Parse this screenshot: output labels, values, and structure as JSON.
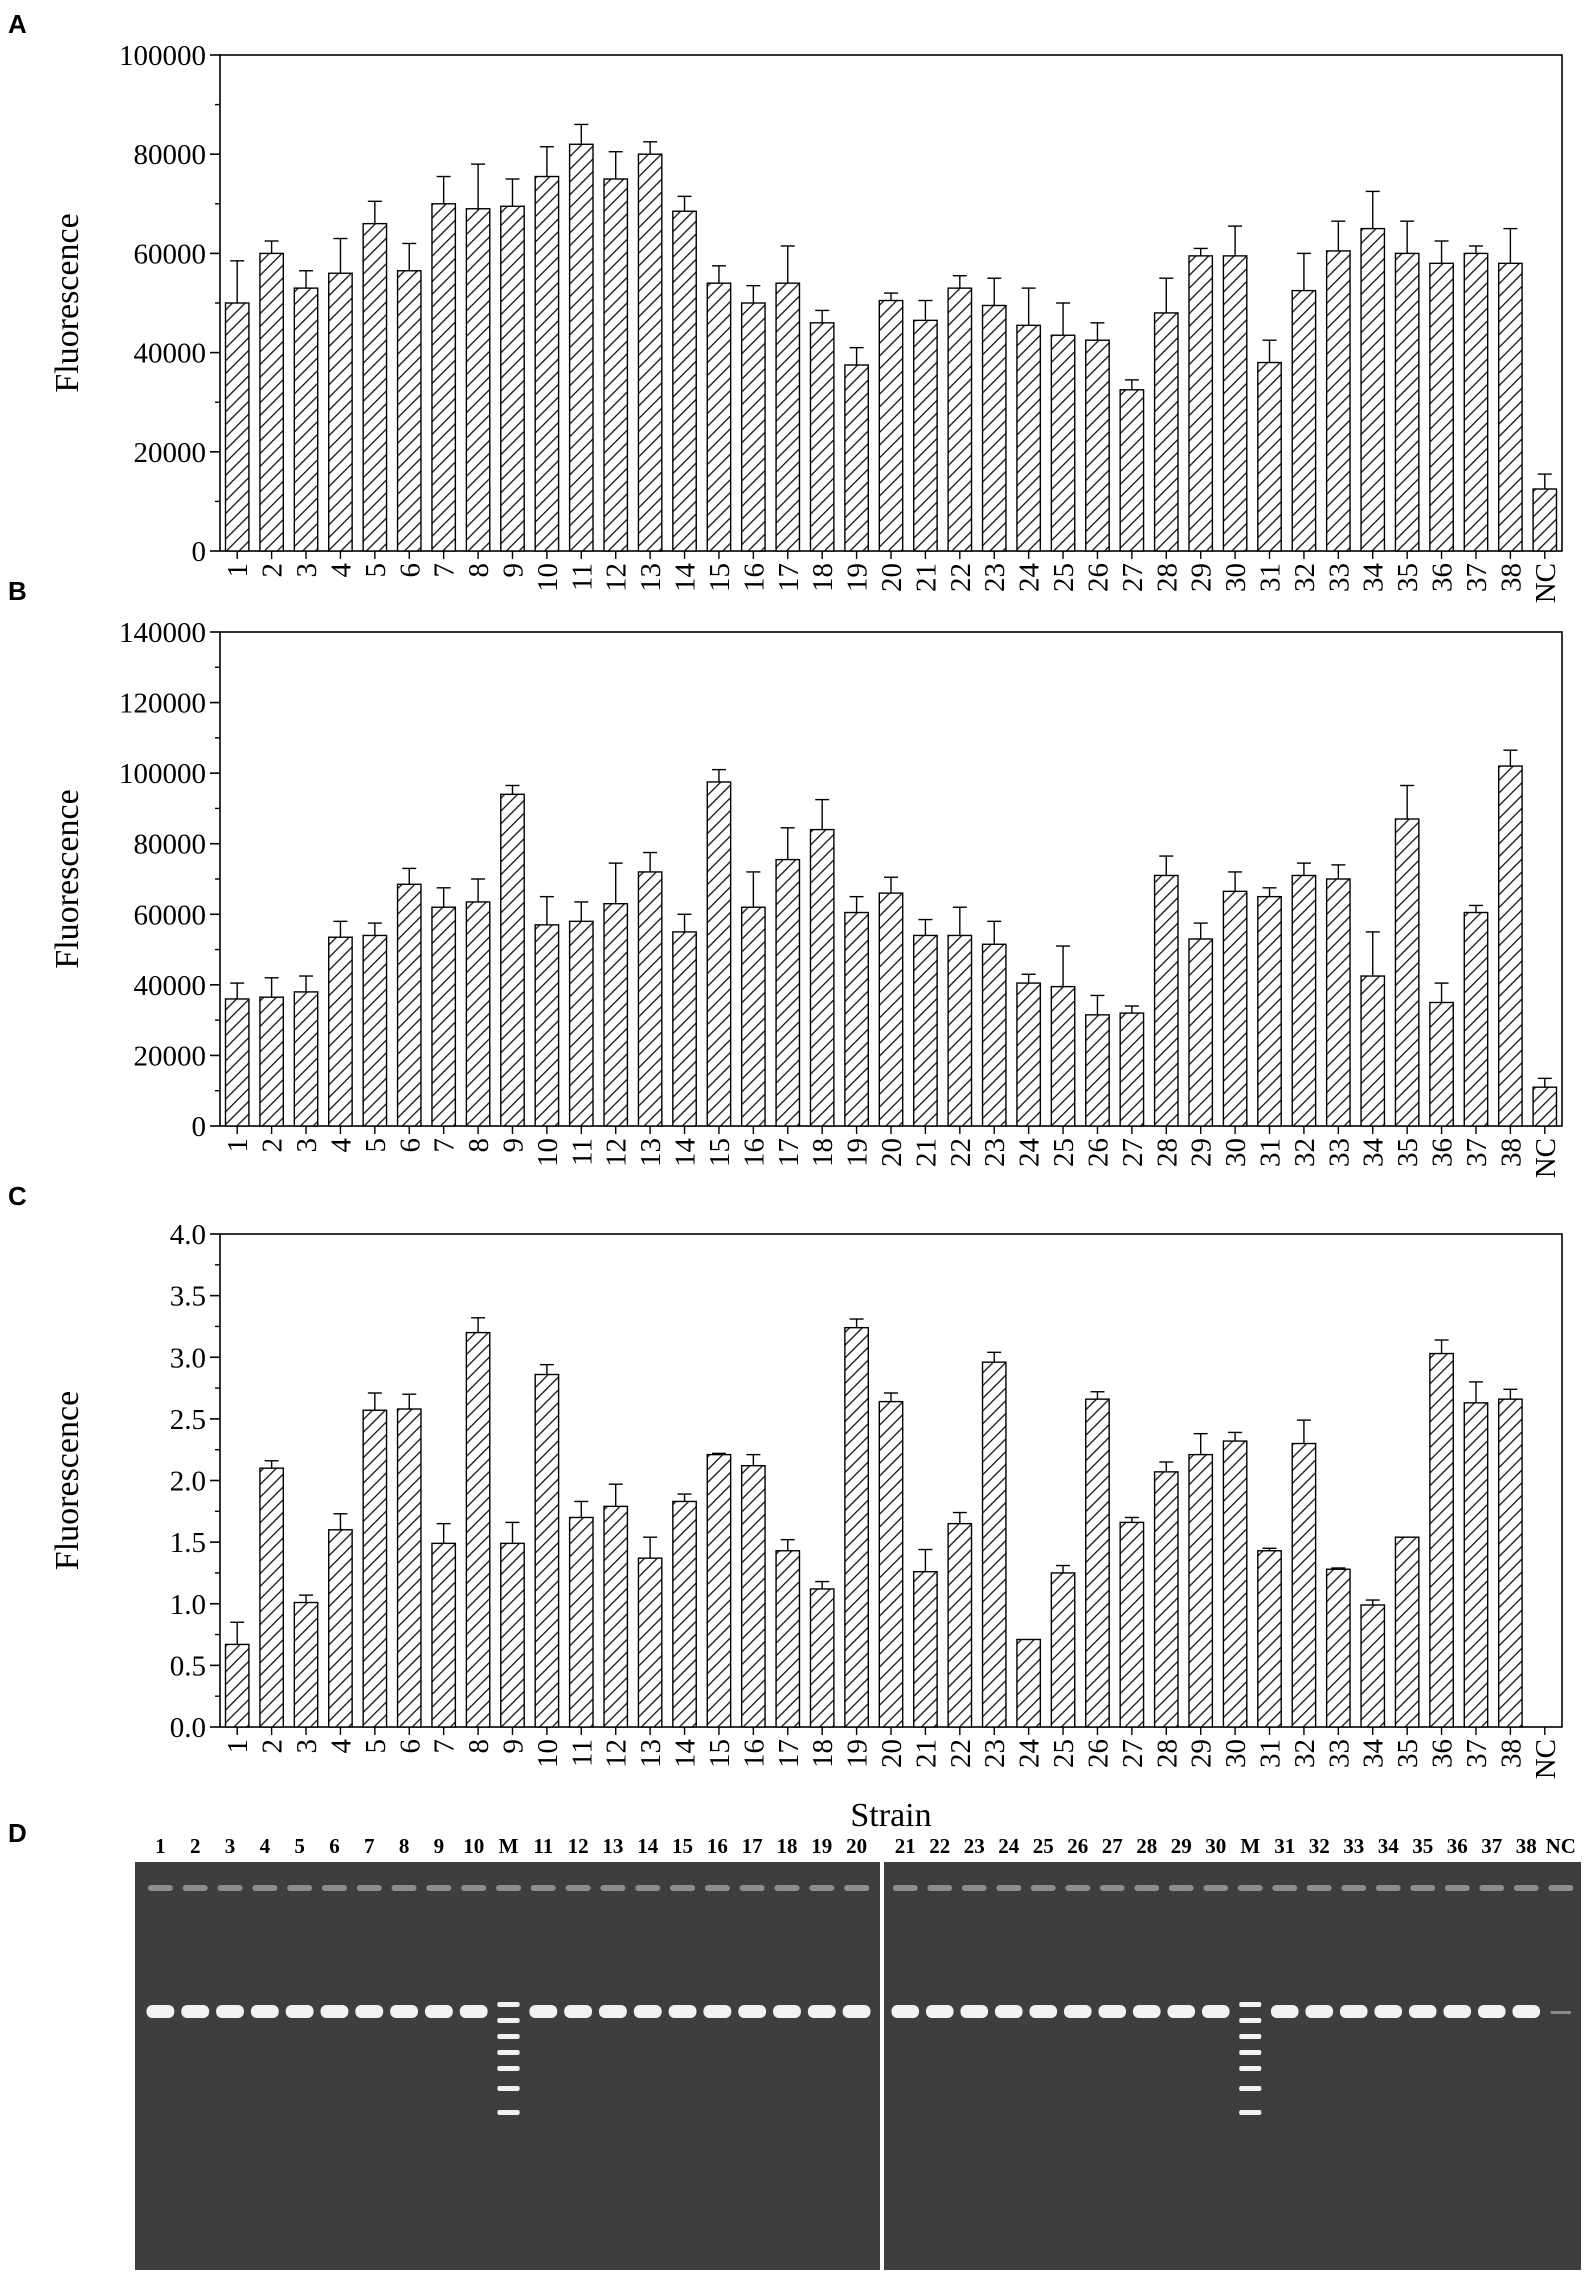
{
  "chart_data": [
    {
      "panel": "A",
      "type": "bar",
      "ylabel": "Fluorescence",
      "xlabel": "",
      "ylim": [
        0,
        100000
      ],
      "yticks": [
        0,
        20000,
        40000,
        60000,
        80000,
        100000
      ],
      "ytick_labels": [
        "0",
        "20000",
        "40000",
        "60000",
        "80000",
        "100000"
      ],
      "categories": [
        "1",
        "2",
        "3",
        "4",
        "5",
        "6",
        "7",
        "8",
        "9",
        "10",
        "11",
        "12",
        "13",
        "14",
        "15",
        "16",
        "17",
        "18",
        "19",
        "20",
        "21",
        "22",
        "23",
        "24",
        "25",
        "26",
        "27",
        "28",
        "29",
        "30",
        "31",
        "32",
        "33",
        "34",
        "35",
        "36",
        "37",
        "38",
        "NC"
      ],
      "values": [
        50000,
        60000,
        53000,
        56000,
        66000,
        56500,
        70000,
        69000,
        69500,
        75500,
        82000,
        75000,
        80000,
        68500,
        54000,
        50000,
        54000,
        46000,
        37500,
        50500,
        46500,
        53000,
        49500,
        45500,
        43500,
        42500,
        32500,
        48000,
        59500,
        59500,
        38000,
        52500,
        60500,
        65000,
        60000,
        58000,
        60000,
        58000,
        12500
      ],
      "errors": [
        8500,
        2500,
        3500,
        7000,
        4500,
        5500,
        5500,
        9000,
        5500,
        6000,
        4000,
        5500,
        2500,
        3000,
        3500,
        3500,
        7500,
        2500,
        3500,
        1500,
        4000,
        2500,
        5500,
        7500,
        6500,
        3500,
        2000,
        7000,
        1500,
        6000,
        4500,
        7500,
        6000,
        7500,
        6500,
        4500,
        1500,
        7000,
        3000
      ],
      "grid": false,
      "legend": "none"
    },
    {
      "panel": "B",
      "type": "bar",
      "ylabel": "Fluorescence",
      "xlabel": "",
      "ylim": [
        0,
        140000
      ],
      "yticks": [
        0,
        20000,
        40000,
        60000,
        80000,
        100000,
        120000,
        140000
      ],
      "ytick_labels": [
        "0",
        "20000",
        "40000",
        "60000",
        "80000",
        "100000",
        "120000",
        "140000"
      ],
      "categories": [
        "1",
        "2",
        "3",
        "4",
        "5",
        "6",
        "7",
        "8",
        "9",
        "10",
        "11",
        "12",
        "13",
        "14",
        "15",
        "16",
        "17",
        "18",
        "19",
        "20",
        "21",
        "22",
        "23",
        "24",
        "25",
        "26",
        "27",
        "28",
        "29",
        "30",
        "31",
        "32",
        "33",
        "34",
        "35",
        "36",
        "37",
        "38",
        "NC"
      ],
      "values": [
        36000,
        36500,
        38000,
        53500,
        54000,
        68500,
        62000,
        63500,
        94000,
        57000,
        58000,
        63000,
        72000,
        55000,
        97500,
        62000,
        75500,
        84000,
        60500,
        66000,
        54000,
        54000,
        51500,
        40500,
        39500,
        31500,
        32000,
        71000,
        53000,
        66500,
        65000,
        71000,
        70000,
        42500,
        87000,
        35000,
        60500,
        102000,
        11000
      ],
      "errors": [
        4500,
        5500,
        4500,
        4500,
        3500,
        4500,
        5500,
        6500,
        2500,
        8000,
        5500,
        11500,
        5500,
        5000,
        3500,
        10000,
        9000,
        8500,
        4500,
        4500,
        4500,
        8000,
        6500,
        2500,
        11500,
        5500,
        2000,
        5500,
        4500,
        5500,
        2500,
        3500,
        4000,
        12500,
        9500,
        5500,
        2000,
        4500,
        2500
      ],
      "grid": false,
      "legend": "none"
    },
    {
      "panel": "C",
      "type": "bar",
      "ylabel": "Fluorescence",
      "xlabel": "Strain",
      "ylim": [
        0,
        4.0
      ],
      "yticks": [
        0,
        0.5,
        1.0,
        1.5,
        2.0,
        2.5,
        3.0,
        3.5,
        4.0
      ],
      "ytick_labels": [
        "0.0",
        "0.5",
        "1.0",
        "1.5",
        "2.0",
        "2.5",
        "3.0",
        "3.5",
        "4.0"
      ],
      "categories": [
        "1",
        "2",
        "3",
        "4",
        "5",
        "6",
        "7",
        "8",
        "9",
        "10",
        "11",
        "12",
        "13",
        "14",
        "15",
        "16",
        "17",
        "18",
        "19",
        "20",
        "21",
        "22",
        "23",
        "24",
        "25",
        "26",
        "27",
        "28",
        "29",
        "30",
        "31",
        "32",
        "33",
        "34",
        "35",
        "36",
        "37",
        "38",
        "NC"
      ],
      "values": [
        0.67,
        2.1,
        1.01,
        1.6,
        2.57,
        2.58,
        1.49,
        3.2,
        1.49,
        2.86,
        1.7,
        1.79,
        1.37,
        1.83,
        2.21,
        2.12,
        1.43,
        1.12,
        3.24,
        2.64,
        1.26,
        1.65,
        2.96,
        0.71,
        1.25,
        2.66,
        1.66,
        2.07,
        2.21,
        2.32,
        1.43,
        2.3,
        1.28,
        0.99,
        1.54,
        3.03,
        2.63,
        2.66,
        0.0
      ],
      "errors": [
        0.18,
        0.06,
        0.06,
        0.13,
        0.14,
        0.12,
        0.16,
        0.12,
        0.17,
        0.08,
        0.13,
        0.18,
        0.17,
        0.06,
        0.01,
        0.09,
        0.09,
        0.06,
        0.07,
        0.07,
        0.18,
        0.09,
        0.08,
        0.0,
        0.06,
        0.06,
        0.04,
        0.08,
        0.17,
        0.07,
        0.02,
        0.19,
        0.01,
        0.04,
        0.0,
        0.11,
        0.17,
        0.08,
        0.0
      ],
      "grid": false,
      "legend": "none"
    }
  ],
  "panels": {
    "a_label": "A",
    "b_label": "B",
    "c_label": "C",
    "d_label": "D"
  },
  "gel": {
    "left_lanes": [
      "1",
      "2",
      "3",
      "4",
      "5",
      "6",
      "7",
      "8",
      "9",
      "10",
      "M",
      "11",
      "12",
      "13",
      "14",
      "15",
      "16",
      "17",
      "18",
      "19",
      "20"
    ],
    "right_lanes": [
      "21",
      "22",
      "23",
      "24",
      "25",
      "26",
      "27",
      "28",
      "29",
      "30",
      "M",
      "31",
      "32",
      "33",
      "34",
      "35",
      "36",
      "37",
      "38",
      "NC"
    ],
    "background_color": "#3e3e3e",
    "band_color": "#f2f2f2"
  }
}
